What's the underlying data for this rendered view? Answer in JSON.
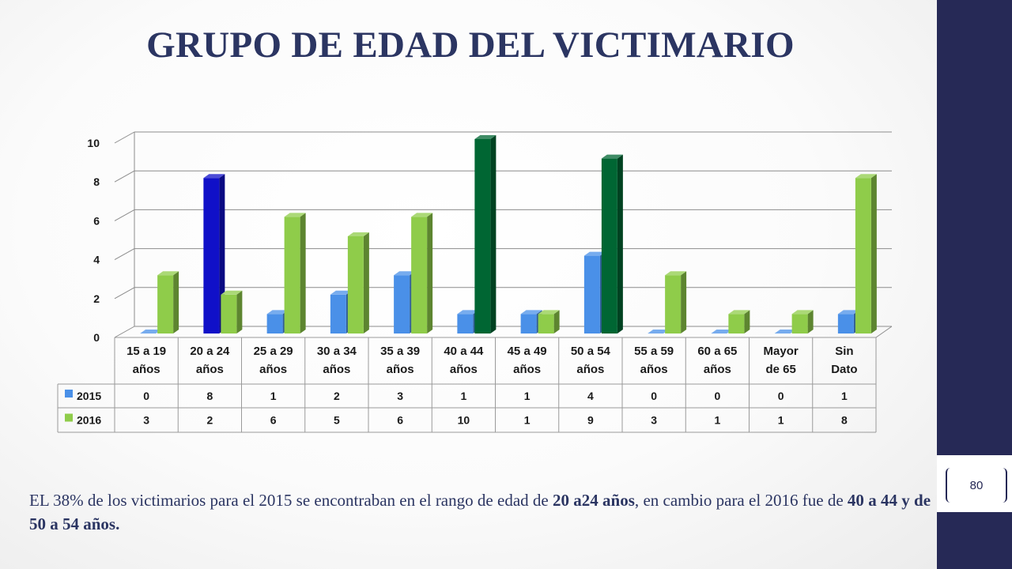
{
  "slide": {
    "title": "GRUPO DE EDAD DEL VICTIMARIO",
    "page_number": "80",
    "caption": {
      "part1": "EL 38% de los victimarios para el 2015 se encontraban en el rango de edad de ",
      "bold1": "20 a24 años",
      "part2": ", en cambio para el 2016 fue de ",
      "bold2": "40 a 44 y de 50 a 54 años."
    },
    "colors": {
      "sidebar": "#262956",
      "title": "#2b3562"
    }
  },
  "chart_data": {
    "type": "bar",
    "style": "3d-clustered-column",
    "categories": [
      [
        "15 a 19",
        "años"
      ],
      [
        "20 a 24",
        "años"
      ],
      [
        "25 a 29",
        "años"
      ],
      [
        "30 a 34",
        "años"
      ],
      [
        "35 a 39",
        "años"
      ],
      [
        "40 a 44",
        "años"
      ],
      [
        "45 a 49",
        "años"
      ],
      [
        "50 a 54",
        "años"
      ],
      [
        "55 a 59",
        "años"
      ],
      [
        "60 a 65",
        "años"
      ],
      [
        "Mayor",
        "de 65"
      ],
      [
        "Sin",
        "Dato"
      ]
    ],
    "series": [
      {
        "name": "2015",
        "color": "#4a90e8",
        "values": [
          0,
          8,
          1,
          2,
          3,
          1,
          1,
          4,
          0,
          0,
          0,
          1
        ]
      },
      {
        "name": "2016",
        "color": "#8fcc4a",
        "values": [
          3,
          2,
          6,
          5,
          6,
          10,
          1,
          9,
          3,
          1,
          1,
          8
        ]
      }
    ],
    "highlights": [
      {
        "series": 0,
        "category": 1,
        "color": "#1010c8"
      },
      {
        "series": 1,
        "category": 5,
        "color": "#006633"
      },
      {
        "series": 1,
        "category": 7,
        "color": "#006633"
      }
    ],
    "ylim": [
      0,
      10
    ],
    "yticks": [
      0,
      2,
      4,
      6,
      8,
      10
    ],
    "grid": true,
    "data_table": true,
    "legend": "data-table"
  }
}
